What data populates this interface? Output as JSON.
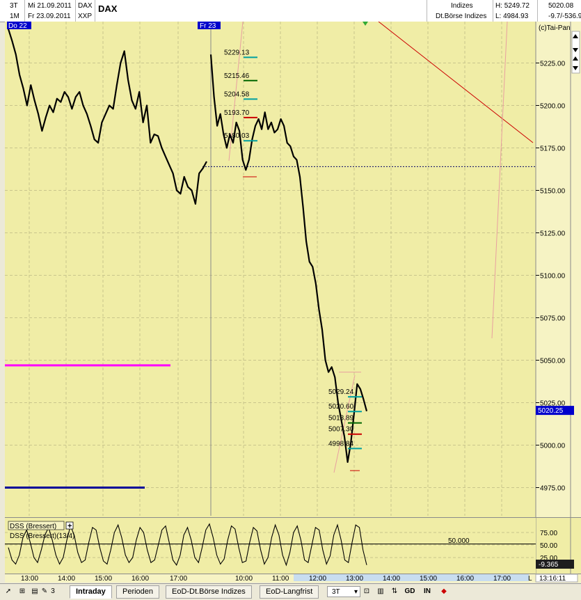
{
  "header": {
    "row1": {
      "interval": "3T",
      "date": "Mi 21.09.2011",
      "code": "DAX",
      "name": "DAX",
      "group": "Indizes",
      "high": "H: 5249.72",
      "last": "5020.08"
    },
    "row2": {
      "interval": "1M",
      "date": "Fr 23.09.2011",
      "exchange": "XXP",
      "group": "Dt.Börse Indizes",
      "low": "L: 4984.93",
      "change": "-9.7/-536.9"
    }
  },
  "copyright": "(c)Tai-Pan",
  "day_markers": [
    "Do 22",
    "Fr 23"
  ],
  "price_badge": "5020.25",
  "indicator": {
    "title": "DSS (Bressert)",
    "subtitle": "DSS (Bressert)(13/4)",
    "level_label": "50.000",
    "value_badge": "-9.365",
    "ticks": [
      "75.00",
      "50.00",
      "25.00"
    ]
  },
  "time_ticks": [
    "13:00",
    "14:00",
    "15:00",
    "16:00",
    "17:00",
    "10:00",
    "11:00",
    "12:00",
    "13:00",
    "14:00",
    "15:00",
    "16:00",
    "17:00"
  ],
  "time_end_label": "L",
  "clock": "13:16:11",
  "tabs": {
    "intraday": "Intraday",
    "perioden": "Perioden",
    "eod_boerse": "EoD-Dt.Börse Indizes",
    "eod_lang": "EoD-Langfrist"
  },
  "toolbar": {
    "pen_count": "3",
    "interval": "3T",
    "gd": "GD",
    "in": "IN"
  },
  "colors": {
    "background": "#F0EDA6",
    "price": "#000000",
    "magenta": "#FF00FF",
    "navy": "#000099",
    "trend": "#CC0000",
    "badge": "#0000CC"
  },
  "chart_data": {
    "type": "line",
    "ylim": [
      4960,
      5250
    ],
    "y_ticks": [
      5225,
      5200,
      5175,
      5150,
      5125,
      5100,
      5075,
      5050,
      5025,
      5000,
      4975
    ],
    "y_tick_labels": [
      "5225.00",
      "5200.00",
      "5175.00",
      "5150.00",
      "5125.00",
      "5100.00",
      "5075.00",
      "5050.00",
      "5025.00",
      "5000.00",
      "4975.00"
    ],
    "series": [
      {
        "values": [
          5245,
          5238,
          5230,
          5218,
          5210,
          5200,
          5212,
          5203,
          5195,
          5185,
          5193,
          5200,
          5196,
          5204,
          5202,
          5208,
          5205,
          5198,
          5205,
          5208,
          5200,
          5195,
          5188,
          5180,
          5178,
          5190,
          5195,
          5200,
          5198,
          5212,
          5225,
          5232,
          5215,
          5203,
          5198,
          5208,
          5190,
          5200,
          5178,
          5183,
          5182,
          5175,
          5170,
          5165,
          5160,
          5150,
          5148,
          5158,
          5152,
          5150,
          5142,
          5160,
          5163,
          5167,
          null,
          5230,
          5205,
          5188,
          5195,
          5183,
          5175,
          5183,
          5178,
          5190,
          5185,
          5168,
          5162,
          5168,
          5180,
          5188,
          5192,
          5186,
          5196,
          5186,
          5190,
          5184,
          5186,
          5192,
          5188,
          5178,
          5176,
          5170,
          5168,
          5158,
          5140,
          5120,
          5108,
          5105,
          5095,
          5080,
          5068,
          5050,
          5043,
          5046,
          5040,
          5025,
          5015,
          5005,
          4990,
          5001,
          5018,
          5036,
          5033,
          5027,
          5020
        ]
      }
    ],
    "annotations": [
      {
        "value": 5229.13,
        "label": "5229.13"
      },
      {
        "value": 5215.46,
        "label": "5215.46"
      },
      {
        "value": 5204.58,
        "label": "5204.58"
      },
      {
        "value": 5193.7,
        "label": "5193.70"
      },
      {
        "value": 5180.03,
        "label": "5180.03"
      },
      {
        "value": 5029.24,
        "label": "5029.24"
      },
      {
        "value": 5020.6,
        "label": "5020.60"
      },
      {
        "value": 5013.89,
        "label": "5013.89"
      },
      {
        "value": 5007.3,
        "label": "5007.30"
      },
      {
        "value": 4998.84,
        "label": "4998.84"
      }
    ],
    "reference_levels": [
      {
        "value": 5164,
        "style": "dotted"
      },
      {
        "value": 5047,
        "color": "magenta"
      },
      {
        "value": 4975,
        "color": "navy"
      }
    ],
    "oscillator": {
      "ylim": [
        0,
        100
      ],
      "level": 50,
      "values": [
        45,
        20,
        12,
        30,
        65,
        80,
        55,
        25,
        15,
        40,
        70,
        85,
        60,
        30,
        12,
        25,
        60,
        88,
        70,
        35,
        15,
        20,
        55,
        85,
        80,
        45,
        18,
        12,
        40,
        75,
        90,
        65,
        30,
        15,
        25,
        60,
        85,
        75,
        40,
        15,
        20,
        50,
        80,
        88,
        55,
        20,
        10,
        30,
        70,
        85,
        60,
        25,
        15,
        45,
        80,
        92,
        65,
        30,
        12,
        22,
        60,
        88,
        82,
        45,
        15,
        18,
        55,
        85,
        78,
        40,
        12,
        25,
        65,
        90,
        70,
        30,
        10,
        35,
        75,
        88,
        60,
        20,
        15,
        50,
        85,
        80,
        40,
        12,
        28,
        70,
        90,
        60,
        20,
        15,
        55,
        90,
        85,
        40,
        10
      ]
    }
  }
}
